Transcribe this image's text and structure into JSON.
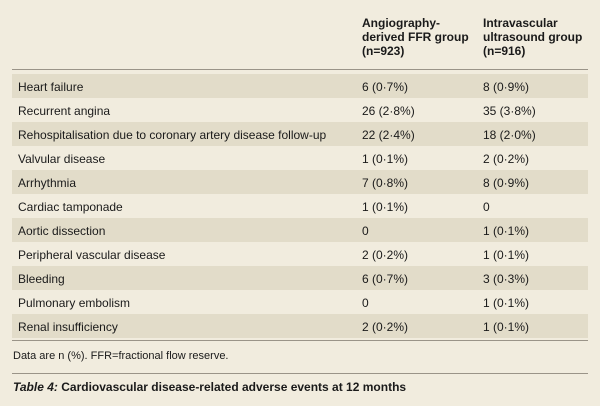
{
  "table": {
    "columns": [
      {
        "lines": [
          "Angiography-",
          "derived FFR group",
          "(n=923)"
        ]
      },
      {
        "lines": [
          "Intravascular",
          "ultrasound group",
          "(n=916)"
        ]
      }
    ],
    "rows": [
      {
        "label": "Heart failure",
        "ffr": "6 (0·7%)",
        "ivus": "8 (0·9%)"
      },
      {
        "label": "Recurrent angina",
        "ffr": "26 (2·8%)",
        "ivus": "35 (3·8%)"
      },
      {
        "label": "Rehospitalisation due to coronary artery disease follow-up",
        "ffr": "22 (2·4%)",
        "ivus": "18 (2·0%)"
      },
      {
        "label": "Valvular disease",
        "ffr": "1 (0·1%)",
        "ivus": "2 (0·2%)"
      },
      {
        "label": "Arrhythmia",
        "ffr": "7 (0·8%)",
        "ivus": "8 (0·9%)"
      },
      {
        "label": "Cardiac tamponade",
        "ffr": "1 (0·1%)",
        "ivus": "0"
      },
      {
        "label": "Aortic dissection",
        "ffr": "0",
        "ivus": "1 (0·1%)"
      },
      {
        "label": "Peripheral vascular disease",
        "ffr": "2 (0·2%)",
        "ivus": "1 (0·1%)"
      },
      {
        "label": "Bleeding",
        "ffr": "6 (0·7%)",
        "ivus": "3 (0·3%)"
      },
      {
        "label": "Pulmonary embolism",
        "ffr": "0",
        "ivus": "1 (0·1%)"
      },
      {
        "label": "Renal insufficiency",
        "ffr": "2 (0·2%)",
        "ivus": "1 (0·1%)"
      }
    ],
    "footnote": "Data are n (%). FFR=fractional flow reserve."
  },
  "caption": {
    "label": "Table 4:",
    "text": " Cardiovascular disease-related adverse events at 12 months"
  }
}
